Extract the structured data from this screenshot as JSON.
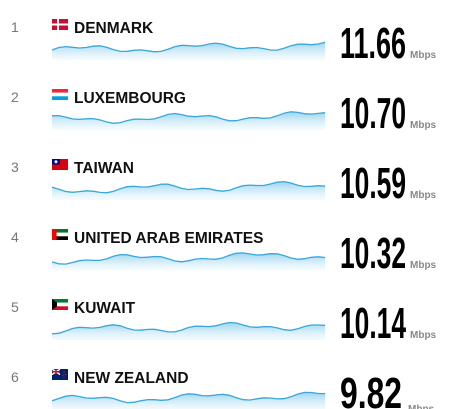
{
  "rows": [
    {
      "rank": 1,
      "country": "DENMARK",
      "speed": "11.66",
      "unit": "Mbps"
    },
    {
      "rank": 2,
      "country": "LUXEMBOURG",
      "speed": "10.70",
      "unit": "Mbps"
    },
    {
      "rank": 3,
      "country": "TAIWAN",
      "speed": "10.59",
      "unit": "Mbps"
    },
    {
      "rank": 4,
      "country": "UNITED ARAB EMIRATES",
      "speed": "10.32",
      "unit": "Mbps"
    },
    {
      "rank": 5,
      "country": "KUWAIT",
      "speed": "10.14",
      "unit": "Mbps"
    },
    {
      "rank": 6,
      "country": "NEW ZEALAND",
      "speed": "9.82",
      "unit": "Mbps"
    }
  ]
}
